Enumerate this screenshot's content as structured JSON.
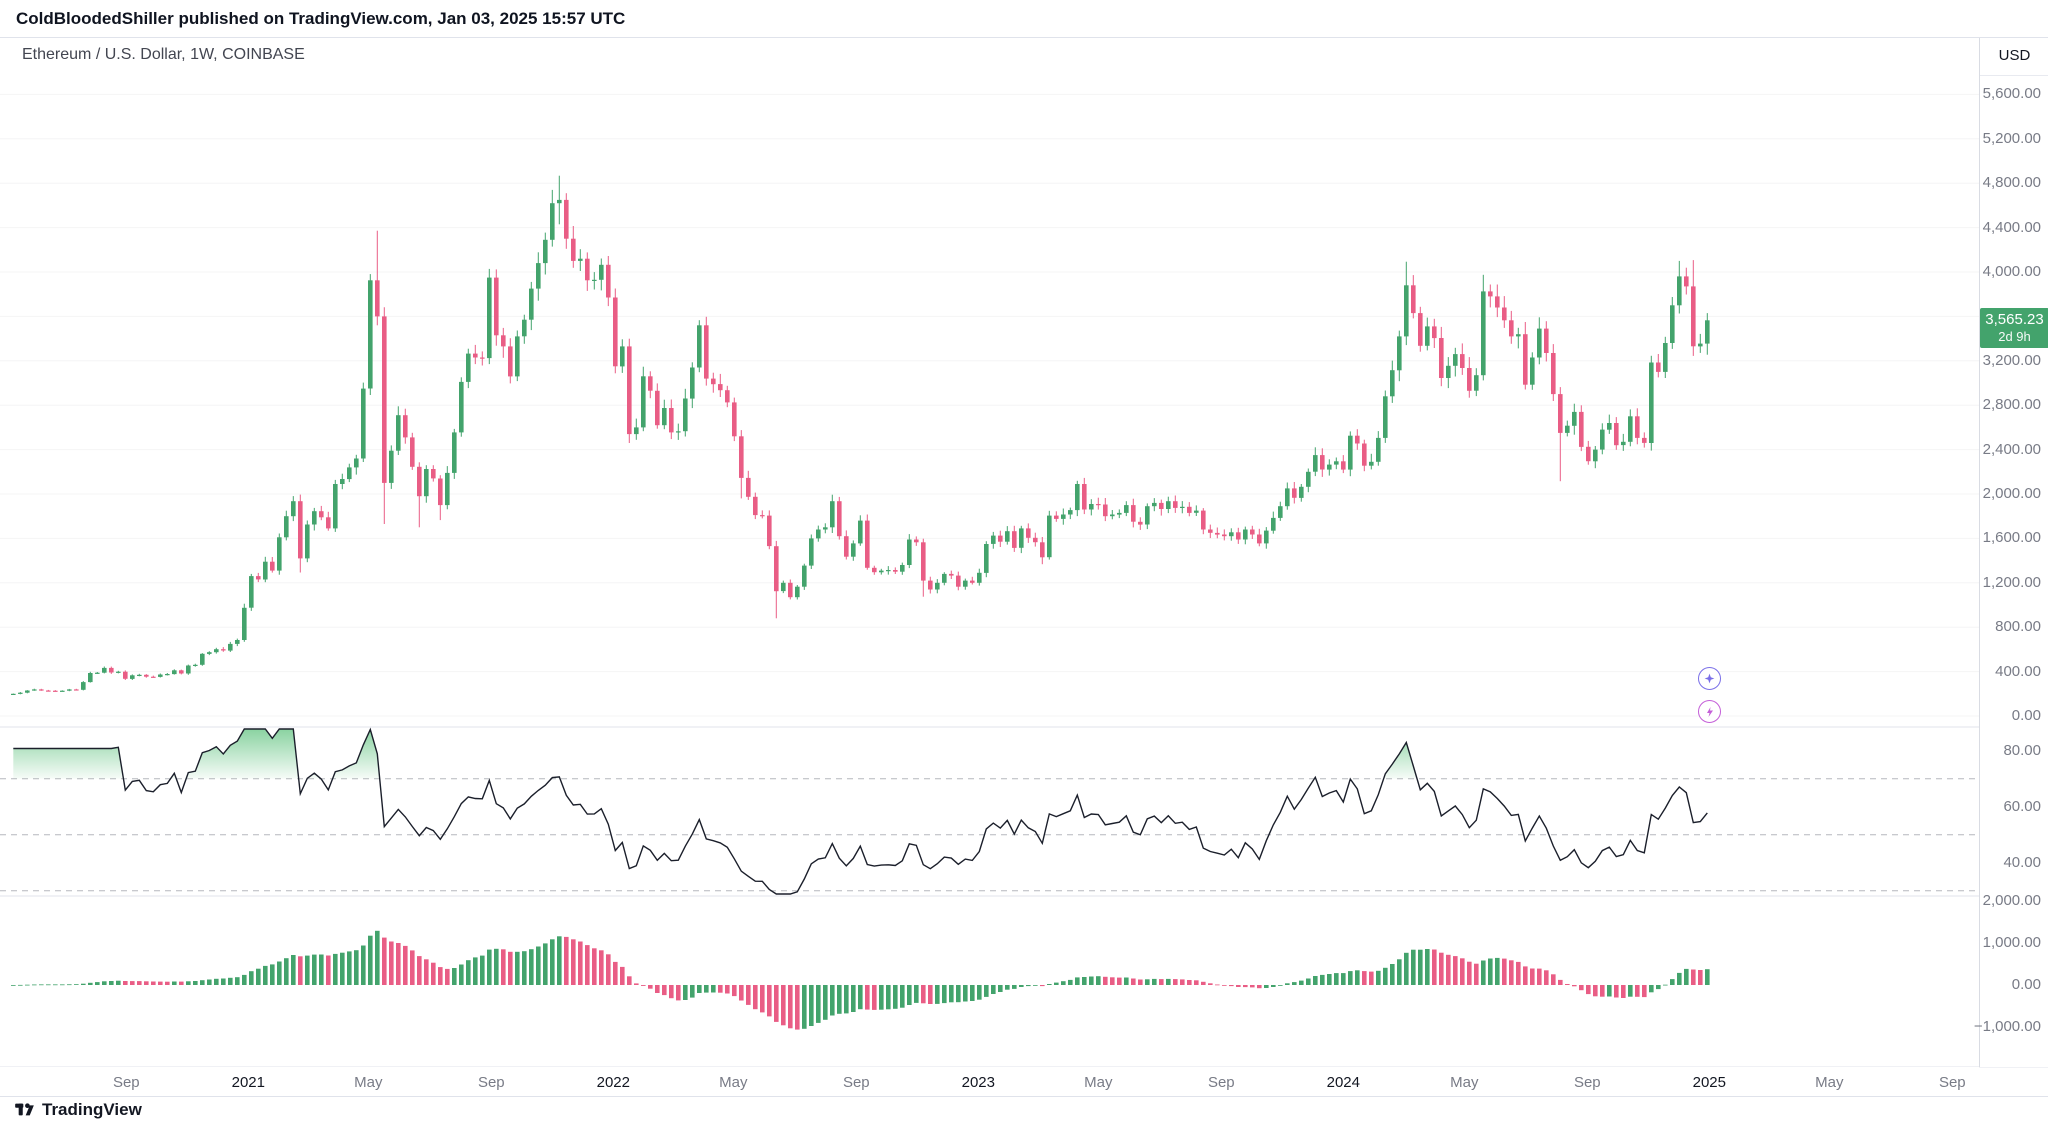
{
  "attribution": {
    "text": "ColdBloodedShiller published on TradingView.com, Jan 03, 2025 15:57 UTC"
  },
  "chart": {
    "symbol_title": "Ethereum / U.S. Dollar, 1W, COINBASE",
    "currency_label": "USD",
    "price_badge": {
      "price": "3,565.23",
      "countdown": "2d 9h"
    },
    "price_ticks": [
      {
        "v": 5600,
        "label": "5,600.00"
      },
      {
        "v": 5200,
        "label": "5,200.00"
      },
      {
        "v": 4800,
        "label": "4,800.00"
      },
      {
        "v": 4400,
        "label": "4,400.00"
      },
      {
        "v": 4000,
        "label": "4,000.00"
      },
      {
        "v": 3600,
        "label": "3,600.00"
      },
      {
        "v": 3200,
        "label": "3,200.00"
      },
      {
        "v": 2800,
        "label": "2,800.00"
      },
      {
        "v": 2400,
        "label": "2,400.00"
      },
      {
        "v": 2000,
        "label": "2,000.00"
      },
      {
        "v": 1600,
        "label": "1,600.00"
      },
      {
        "v": 1200,
        "label": "1,200.00"
      },
      {
        "v": 800,
        "label": "800.00"
      },
      {
        "v": 400,
        "label": "400.00"
      },
      {
        "v": 0,
        "label": "0.00"
      }
    ],
    "rsi_ticks": [
      {
        "v": 80,
        "label": "80.00"
      },
      {
        "v": 60,
        "label": "60.00"
      },
      {
        "v": 40,
        "label": "40.00"
      }
    ],
    "macd_ticks": [
      {
        "v": 2000,
        "label": "2,000.00"
      },
      {
        "v": 1000,
        "label": "1,000.00"
      },
      {
        "v": 0,
        "label": "0.00"
      },
      {
        "v": -1000,
        "label": "−1,000.00"
      }
    ]
  },
  "footer": {
    "brand": "TradingView"
  },
  "chart_data": {
    "type": "candlestick",
    "title": "Ethereum / U.S. Dollar, 1W, COINBASE",
    "interval": "1W",
    "exchange": "COINBASE",
    "last_price": 3565.23,
    "price_axis": {
      "min": 0,
      "max": 5800,
      "tick_step": 400
    },
    "start_date": "2020-05-11",
    "weekly_closes": [
      200,
      210,
      230,
      240,
      230,
      228,
      225,
      228,
      240,
      236,
      305,
      387,
      390,
      433,
      392,
      399,
      335,
      367,
      371,
      354,
      352,
      374,
      378,
      412,
      383,
      455,
      461,
      560,
      575,
      602,
      590,
      650,
      685,
      975,
      1260,
      1230,
      1390,
      1310,
      1610,
      1800,
      1935,
      1420,
      1725,
      1845,
      1790,
      1690,
      2090,
      2135,
      2240,
      2320,
      2950,
      3925,
      3600,
      2100,
      2390,
      2710,
      2510,
      2245,
      1980,
      2225,
      2140,
      1900,
      2190,
      2555,
      3010,
      3265,
      3230,
      3225,
      3950,
      3430,
      3330,
      3060,
      3420,
      3570,
      3850,
      4080,
      4290,
      4620,
      4650,
      4300,
      4100,
      4120,
      3925,
      3930,
      4065,
      3770,
      3150,
      3330,
      2540,
      2600,
      3060,
      2930,
      2620,
      2775,
      2555,
      2565,
      2860,
      3140,
      3520,
      3040,
      2990,
      2935,
      2825,
      2520,
      2145,
      1975,
      1810,
      1805,
      1530,
      1125,
      1200,
      1070,
      1165,
      1355,
      1600,
      1680,
      1700,
      1935,
      1620,
      1435,
      1555,
      1760,
      1335,
      1295,
      1310,
      1315,
      1300,
      1360,
      1590,
      1565,
      1220,
      1140,
      1200,
      1280,
      1265,
      1165,
      1220,
      1200,
      1290,
      1550,
      1625,
      1570,
      1665,
      1515,
      1690,
      1605,
      1565,
      1430,
      1805,
      1775,
      1815,
      1855,
      2090,
      1860,
      1910,
      1905,
      1800,
      1815,
      1830,
      1900,
      1750,
      1725,
      1890,
      1920,
      1865,
      1935,
      1875,
      1885,
      1830,
      1850,
      1680,
      1650,
      1635,
      1620,
      1655,
      1590,
      1680,
      1635,
      1555,
      1670,
      1785,
      1890,
      2050,
      1965,
      2065,
      2200,
      2350,
      2220,
      2265,
      2295,
      2220,
      2525,
      2455,
      2255,
      2290,
      2505,
      2880,
      3115,
      3420,
      3880,
      3630,
      3335,
      3510,
      3405,
      3045,
      3155,
      3260,
      3135,
      2930,
      3070,
      3825,
      3780,
      3680,
      3565,
      3420,
      3440,
      2985,
      3230,
      3490,
      3270,
      2900,
      2550,
      2615,
      2740,
      2425,
      2295,
      2400,
      2580,
      2640,
      2440,
      2470,
      2700,
      2505,
      2460,
      3185,
      3100,
      3360,
      3700,
      3960,
      3870,
      3330,
      3355,
      3565.23
    ],
    "first_open": 195,
    "wick_overrides": {
      "13": {
        "high": 446
      },
      "33": {
        "high": 1012
      },
      "41": {
        "low": 1293
      },
      "52": {
        "high": 4372,
        "low": 3520
      },
      "53": {
        "low": 1730
      },
      "58": {
        "low": 1700
      },
      "61": {
        "low": 1765
      },
      "78": {
        "high": 4868,
        "low": 4430
      },
      "104": {
        "low": 1960
      },
      "109": {
        "low": 880
      },
      "130": {
        "low": 1075
      },
      "147": {
        "low": 1368
      },
      "199": {
        "high": 4093
      },
      "210": {
        "high": 3975
      },
      "221": {
        "low": 2115
      },
      "238": {
        "high": 4100
      },
      "240": {
        "high": 4107
      },
      "242": {
        "open": 3355,
        "high": 3630,
        "low": 3255,
        "close": 3565.23
      }
    },
    "indicators": {
      "rsi": {
        "period": 14,
        "bands": [
          70,
          50,
          30
        ],
        "axis_ticks": [
          80,
          60,
          40
        ]
      },
      "macd_hist": {
        "fast": 12,
        "slow": 26,
        "scale": 2,
        "axis_ticks": [
          2000,
          1000,
          0,
          -1000
        ]
      }
    },
    "time_axis_labels": [
      {
        "label": "Sep",
        "date": "2020-09-01",
        "major": false
      },
      {
        "label": "2021",
        "date": "2021-01-01",
        "major": true
      },
      {
        "label": "May",
        "date": "2021-05-01",
        "major": false
      },
      {
        "label": "Sep",
        "date": "2021-09-01",
        "major": false
      },
      {
        "label": "2022",
        "date": "2022-01-01",
        "major": true
      },
      {
        "label": "May",
        "date": "2022-05-01",
        "major": false
      },
      {
        "label": "Sep",
        "date": "2022-09-01",
        "major": false
      },
      {
        "label": "2023",
        "date": "2023-01-01",
        "major": true
      },
      {
        "label": "May",
        "date": "2023-05-01",
        "major": false
      },
      {
        "label": "Sep",
        "date": "2023-09-01",
        "major": false
      },
      {
        "label": "2024",
        "date": "2024-01-01",
        "major": true
      },
      {
        "label": "May",
        "date": "2024-05-01",
        "major": false
      },
      {
        "label": "Sep",
        "date": "2024-09-01",
        "major": false
      },
      {
        "label": "2025",
        "date": "2025-01-01",
        "major": true
      },
      {
        "label": "May",
        "date": "2025-05-01",
        "major": false
      },
      {
        "label": "Sep",
        "date": "2025-09-01",
        "major": false
      }
    ],
    "colors": {
      "up": "#43a36c",
      "down": "#e95d85",
      "rsi_line": "#1b1f2b",
      "rsi_fill": "#22ab4d",
      "axis_text": "#787b86"
    }
  }
}
